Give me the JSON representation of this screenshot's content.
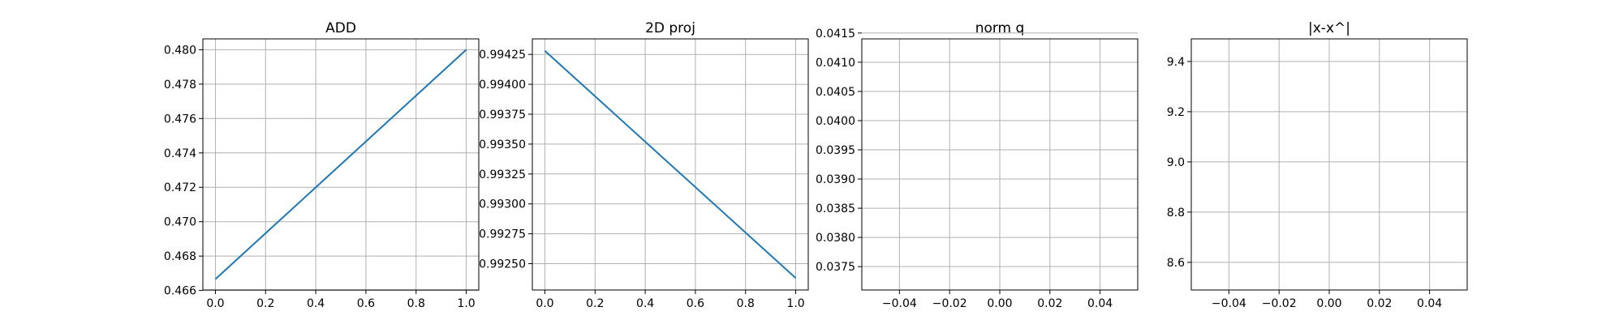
{
  "colors": {
    "series": "#1f77b4",
    "grid": "#b0b0b0",
    "axes": "#000000",
    "background": "#ffffff"
  },
  "chart_data": [
    {
      "type": "line",
      "title": "ADD",
      "xlabel": "",
      "ylabel": "",
      "grid": true,
      "xlim": [
        -0.05,
        1.05
      ],
      "ylim": [
        0.46603,
        0.48063
      ],
      "xticks": [
        0.0,
        0.2,
        0.4,
        0.6,
        0.8,
        1.0
      ],
      "xtick_labels": [
        "0.0",
        "0.2",
        "0.4",
        "0.6",
        "0.8",
        "1.0"
      ],
      "yticks": [
        0.466,
        0.468,
        0.47,
        0.472,
        0.474,
        0.476,
        0.478,
        0.48
      ],
      "ytick_labels": [
        "0.466",
        "0.468",
        "0.470",
        "0.472",
        "0.474",
        "0.476",
        "0.478",
        "0.480"
      ],
      "series": [
        {
          "x": [
            0,
            1
          ],
          "y": [
            0.46666,
            0.48
          ]
        }
      ]
    },
    {
      "type": "line",
      "title": "2D proj",
      "xlabel": "",
      "ylabel": "",
      "grid": true,
      "xlim": [
        -0.05,
        1.05
      ],
      "ylim": [
        0.99228,
        0.99438
      ],
      "xticks": [
        0.0,
        0.2,
        0.4,
        0.6,
        0.8,
        1.0
      ],
      "xtick_labels": [
        "0.0",
        "0.2",
        "0.4",
        "0.6",
        "0.8",
        "1.0"
      ],
      "yticks": [
        0.9925,
        0.99275,
        0.993,
        0.99325,
        0.9935,
        0.99375,
        0.994,
        0.99425
      ],
      "ytick_labels": [
        "0.99250",
        "0.99275",
        "0.99300",
        "0.99325",
        "0.99350",
        "0.99375",
        "0.99400",
        "0.99425"
      ],
      "series": [
        {
          "x": [
            0,
            1
          ],
          "y": [
            0.99428,
            0.99238
          ]
        }
      ]
    },
    {
      "type": "line",
      "title": "norm q",
      "xlabel": "",
      "ylabel": "",
      "grid": true,
      "xlim": [
        -0.055,
        0.055
      ],
      "ylim": [
        0.0371,
        0.0414
      ],
      "xticks": [
        -0.04,
        -0.02,
        0.0,
        0.02,
        0.04
      ],
      "xtick_labels": [
        "−0.04",
        "−0.02",
        "0.00",
        "0.02",
        "0.04"
      ],
      "yticks": [
        0.0375,
        0.038,
        0.0385,
        0.039,
        0.0395,
        0.04,
        0.0405,
        0.041,
        0.0415
      ],
      "ytick_labels": [
        "0.0375",
        "0.0380",
        "0.0385",
        "0.0390",
        "0.0395",
        "0.0400",
        "0.0405",
        "0.0410",
        "0.0415"
      ],
      "series": []
    },
    {
      "type": "line",
      "title": "|x-x^|",
      "xlabel": "",
      "ylabel": "",
      "grid": true,
      "xlim": [
        -0.055,
        0.055
      ],
      "ylim": [
        8.49,
        9.49
      ],
      "xticks": [
        -0.04,
        -0.02,
        0.0,
        0.02,
        0.04
      ],
      "xtick_labels": [
        "−0.04",
        "−0.02",
        "0.00",
        "0.02",
        "0.04"
      ],
      "yticks": [
        8.6,
        8.8,
        9.0,
        9.2,
        9.4
      ],
      "ytick_labels": [
        "8.6",
        "8.8",
        "9.0",
        "9.2",
        "9.4"
      ],
      "series": []
    }
  ]
}
